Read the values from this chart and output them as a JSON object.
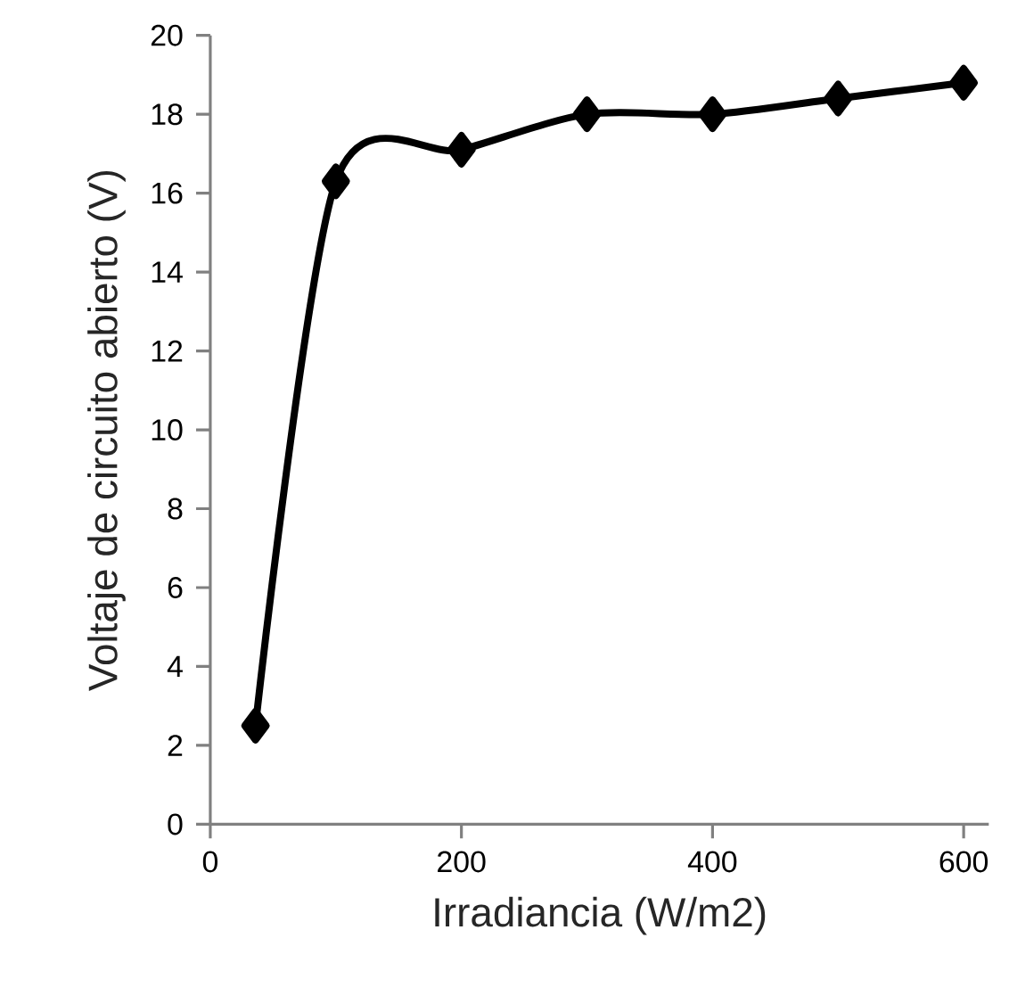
{
  "chart_data": {
    "type": "line",
    "xlabel": "Irradiancia (W/m2)",
    "ylabel": "Voltaje de circuito abierto (V)",
    "x": [
      36,
      100,
      200,
      300,
      400,
      500,
      600
    ],
    "values": [
      2.5,
      16.3,
      17.1,
      18.0,
      18.0,
      18.4,
      18.8
    ],
    "color": "#000000",
    "marker": "diamond",
    "line_style": "solid",
    "xlim": [
      0,
      620
    ],
    "ylim": [
      0,
      20
    ],
    "xticks": [
      0,
      200,
      400,
      600
    ],
    "yticks": [
      0,
      2,
      4,
      6,
      8,
      10,
      12,
      14,
      16,
      18,
      20
    ]
  }
}
